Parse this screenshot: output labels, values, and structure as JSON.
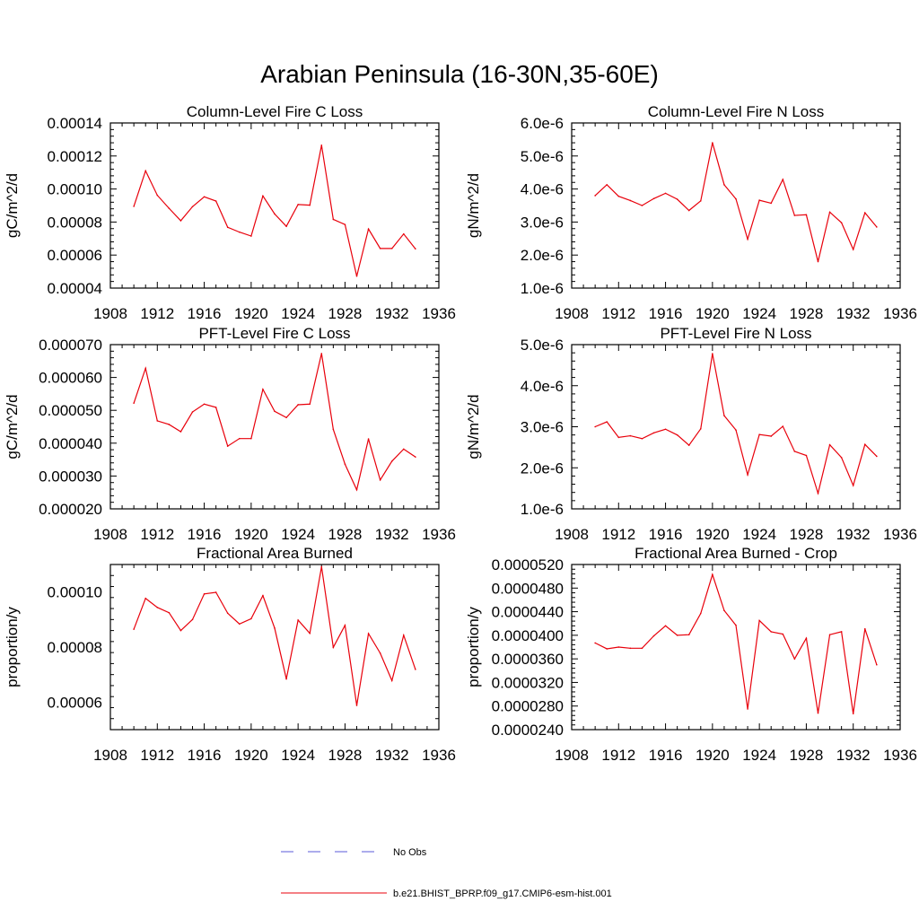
{
  "page_title": "Arabian Peninsula (16-30N,35-60E)",
  "legend": {
    "items": [
      {
        "label": "No Obs",
        "color": "#5a5ad8",
        "dash": true
      },
      {
        "label": "b.e21.BHIST_BPRP.f09_g17.CMIP6-esm-hist.001",
        "color": "#e8000b",
        "dash": false
      }
    ]
  },
  "chart_data": [
    {
      "type": "line",
      "title": "Column-Level Fire C Loss",
      "ylabel": "gC/m^2/d",
      "xlim": [
        1908,
        1936
      ],
      "xticks": [
        1908,
        1912,
        1916,
        1920,
        1924,
        1928,
        1932,
        1936
      ],
      "ylim": [
        4e-05,
        0.00014
      ],
      "yticks": [
        4e-05,
        6e-05,
        8e-05,
        0.0001,
        0.00012,
        0.00014
      ],
      "ytick_labels": [
        "0.00004",
        "0.00006",
        "0.00008",
        "0.00010",
        "0.00012",
        "0.00014"
      ],
      "grid": false,
      "series": [
        {
          "color": "#e8000b",
          "x": [
            1910,
            1911,
            1912,
            1913,
            1914,
            1915,
            1916,
            1917,
            1918,
            1919,
            1920,
            1921,
            1922,
            1923,
            1924,
            1925,
            1926,
            1927,
            1928,
            1929,
            1930,
            1931,
            1932,
            1933,
            1934
          ],
          "y": [
            8.95e-05,
            0.000111,
            9.62e-05,
            8.83e-05,
            8.08e-05,
            8.93e-05,
            9.53e-05,
            9.27e-05,
            7.68e-05,
            7.39e-05,
            7.15e-05,
            9.58e-05,
            8.49e-05,
            7.74e-05,
            9.06e-05,
            9.02e-05,
            0.0001265,
            8.16e-05,
            7.85e-05,
            4.72e-05,
            7.58e-05,
            6.4e-05,
            6.4e-05,
            7.28e-05,
            6.38e-05
          ]
        }
      ]
    },
    {
      "type": "line",
      "title": "Column-Level Fire N Loss",
      "ylabel": "gN/m^2/d",
      "xlim": [
        1908,
        1936
      ],
      "xticks": [
        1908,
        1912,
        1916,
        1920,
        1924,
        1928,
        1932,
        1936
      ],
      "ylim": [
        1e-06,
        6e-06
      ],
      "yticks": [
        1e-06,
        2e-06,
        3e-06,
        4e-06,
        5e-06,
        6e-06
      ],
      "ytick_labels": [
        "1.0e-6",
        "2.0e-6",
        "3.0e-6",
        "4.0e-6",
        "5.0e-6",
        "6.0e-6"
      ],
      "grid": false,
      "series": [
        {
          "color": "#e8000b",
          "x": [
            1910,
            1911,
            1912,
            1913,
            1914,
            1915,
            1916,
            1917,
            1918,
            1919,
            1920,
            1921,
            1922,
            1923,
            1924,
            1925,
            1926,
            1927,
            1928,
            1929,
            1930,
            1931,
            1932,
            1933,
            1934
          ],
          "y": [
            3.8e-06,
            4.13e-06,
            3.78e-06,
            3.65e-06,
            3.5e-06,
            3.71e-06,
            3.87e-06,
            3.69e-06,
            3.35e-06,
            3.64e-06,
            5.4e-06,
            4.13e-06,
            3.7e-06,
            2.48e-06,
            3.66e-06,
            3.57e-06,
            4.29e-06,
            3.2e-06,
            3.22e-06,
            1.8e-06,
            3.3e-06,
            2.98e-06,
            2.17e-06,
            3.28e-06,
            2.85e-06
          ]
        }
      ]
    },
    {
      "type": "line",
      "title": "PFT-Level Fire C Loss",
      "ylabel": "gC/m^2/d",
      "xlim": [
        1908,
        1936
      ],
      "xticks": [
        1908,
        1912,
        1916,
        1920,
        1924,
        1928,
        1932,
        1936
      ],
      "ylim": [
        2e-05,
        7e-05
      ],
      "yticks": [
        2e-05,
        3e-05,
        4e-05,
        5e-05,
        6e-05,
        7e-05
      ],
      "ytick_labels": [
        "0.000020",
        "0.000030",
        "0.000040",
        "0.000050",
        "0.000060",
        "0.000070"
      ],
      "grid": false,
      "series": [
        {
          "color": "#e8000b",
          "x": [
            1910,
            1911,
            1912,
            1913,
            1914,
            1915,
            1916,
            1917,
            1918,
            1919,
            1920,
            1921,
            1922,
            1923,
            1924,
            1925,
            1926,
            1927,
            1928,
            1929,
            1930,
            1931,
            1932,
            1933,
            1934
          ],
          "y": [
            5.22e-05,
            6.28e-05,
            4.68e-05,
            4.57e-05,
            4.35e-05,
            4.95e-05,
            5.19e-05,
            5.09e-05,
            3.91e-05,
            4.14e-05,
            4.14e-05,
            5.64e-05,
            4.97e-05,
            4.78e-05,
            5.17e-05,
            5.19e-05,
            6.73e-05,
            4.42e-05,
            3.36e-05,
            2.58e-05,
            4.13e-05,
            2.88e-05,
            3.45e-05,
            3.82e-05,
            3.58e-05
          ]
        }
      ]
    },
    {
      "type": "line",
      "title": "PFT-Level Fire N Loss",
      "ylabel": "gN/m^2/d",
      "xlim": [
        1908,
        1936
      ],
      "xticks": [
        1908,
        1912,
        1916,
        1920,
        1924,
        1928,
        1932,
        1936
      ],
      "ylim": [
        1e-06,
        5e-06
      ],
      "yticks": [
        1e-06,
        2e-06,
        3e-06,
        4e-06,
        5e-06
      ],
      "ytick_labels": [
        "1.0e-6",
        "2.0e-6",
        "3.0e-6",
        "4.0e-6",
        "5.0e-6"
      ],
      "grid": false,
      "series": [
        {
          "color": "#e8000b",
          "x": [
            1910,
            1911,
            1912,
            1913,
            1914,
            1915,
            1916,
            1917,
            1918,
            1919,
            1920,
            1921,
            1922,
            1923,
            1924,
            1925,
            1926,
            1927,
            1928,
            1929,
            1930,
            1931,
            1932,
            1933,
            1934
          ],
          "y": [
            3e-06,
            3.12e-06,
            2.74e-06,
            2.78e-06,
            2.71e-06,
            2.85e-06,
            2.94e-06,
            2.8e-06,
            2.55e-06,
            2.95e-06,
            4.78e-06,
            3.27e-06,
            2.92e-06,
            1.83e-06,
            2.81e-06,
            2.77e-06,
            3.01e-06,
            2.4e-06,
            2.3e-06,
            1.38e-06,
            2.56e-06,
            2.25e-06,
            1.57e-06,
            2.57e-06,
            2.28e-06
          ]
        }
      ]
    },
    {
      "type": "line",
      "title": "Fractional Area Burned",
      "ylabel": "proportion/y",
      "xlim": [
        1908,
        1936
      ],
      "xticks": [
        1908,
        1912,
        1916,
        1920,
        1924,
        1928,
        1932,
        1936
      ],
      "ylim": [
        5e-05,
        0.00011
      ],
      "yticks": [
        6e-05,
        8e-05,
        0.0001
      ],
      "ytick_labels": [
        "0.00006",
        "0.00008",
        "0.00010"
      ],
      "grid": false,
      "series": [
        {
          "color": "#e8000b",
          "x": [
            1910,
            1911,
            1912,
            1913,
            1914,
            1915,
            1916,
            1917,
            1918,
            1919,
            1920,
            1921,
            1922,
            1923,
            1924,
            1925,
            1926,
            1927,
            1928,
            1929,
            1930,
            1931,
            1932,
            1933,
            1934
          ],
          "y": [
            8.65e-05,
            9.77e-05,
            9.44e-05,
            9.25e-05,
            8.6e-05,
            9e-05,
            9.93e-05,
            9.99e-05,
            9.23e-05,
            8.84e-05,
            9.03e-05,
            9.87e-05,
            8.69e-05,
            6.84e-05,
            8.98e-05,
            8.5e-05,
            0.0001092,
            7.99e-05,
            8.79e-05,
            5.88e-05,
            8.49e-05,
            7.78e-05,
            6.78e-05,
            8.43e-05,
            7.19e-05
          ]
        }
      ]
    },
    {
      "type": "line",
      "title": "Fractional Area Burned - Crop",
      "ylabel": "proportion/y",
      "xlim": [
        1908,
        1936
      ],
      "xticks": [
        1908,
        1912,
        1916,
        1920,
        1924,
        1928,
        1932,
        1936
      ],
      "ylim": [
        2.4e-05,
        5.2e-05
      ],
      "yticks": [
        2.4e-05,
        2.8e-05,
        3.2e-05,
        3.6e-05,
        4e-05,
        4.4e-05,
        4.8e-05,
        5.2e-05
      ],
      "ytick_labels": [
        "0.0000240",
        "0.0000280",
        "0.0000320",
        "0.0000360",
        "0.0000400",
        "0.0000440",
        "0.0000480",
        "0.0000520"
      ],
      "grid": false,
      "series": [
        {
          "color": "#e8000b",
          "x": [
            1910,
            1911,
            1912,
            1913,
            1914,
            1915,
            1916,
            1917,
            1918,
            1919,
            1920,
            1921,
            1922,
            1923,
            1924,
            1925,
            1926,
            1927,
            1928,
            1929,
            1930,
            1931,
            1932,
            1933,
            1934
          ],
          "y": [
            3.87e-05,
            3.77e-05,
            3.8e-05,
            3.78e-05,
            3.78e-05,
            3.99e-05,
            4.16e-05,
            4e-05,
            4.01e-05,
            4.37e-05,
            5.03e-05,
            4.42e-05,
            4.17e-05,
            2.75e-05,
            4.25e-05,
            4.06e-05,
            4.02e-05,
            3.6e-05,
            3.95e-05,
            2.68e-05,
            4.01e-05,
            4.06e-05,
            2.67e-05,
            4.11e-05,
            3.5e-05
          ]
        }
      ]
    }
  ]
}
